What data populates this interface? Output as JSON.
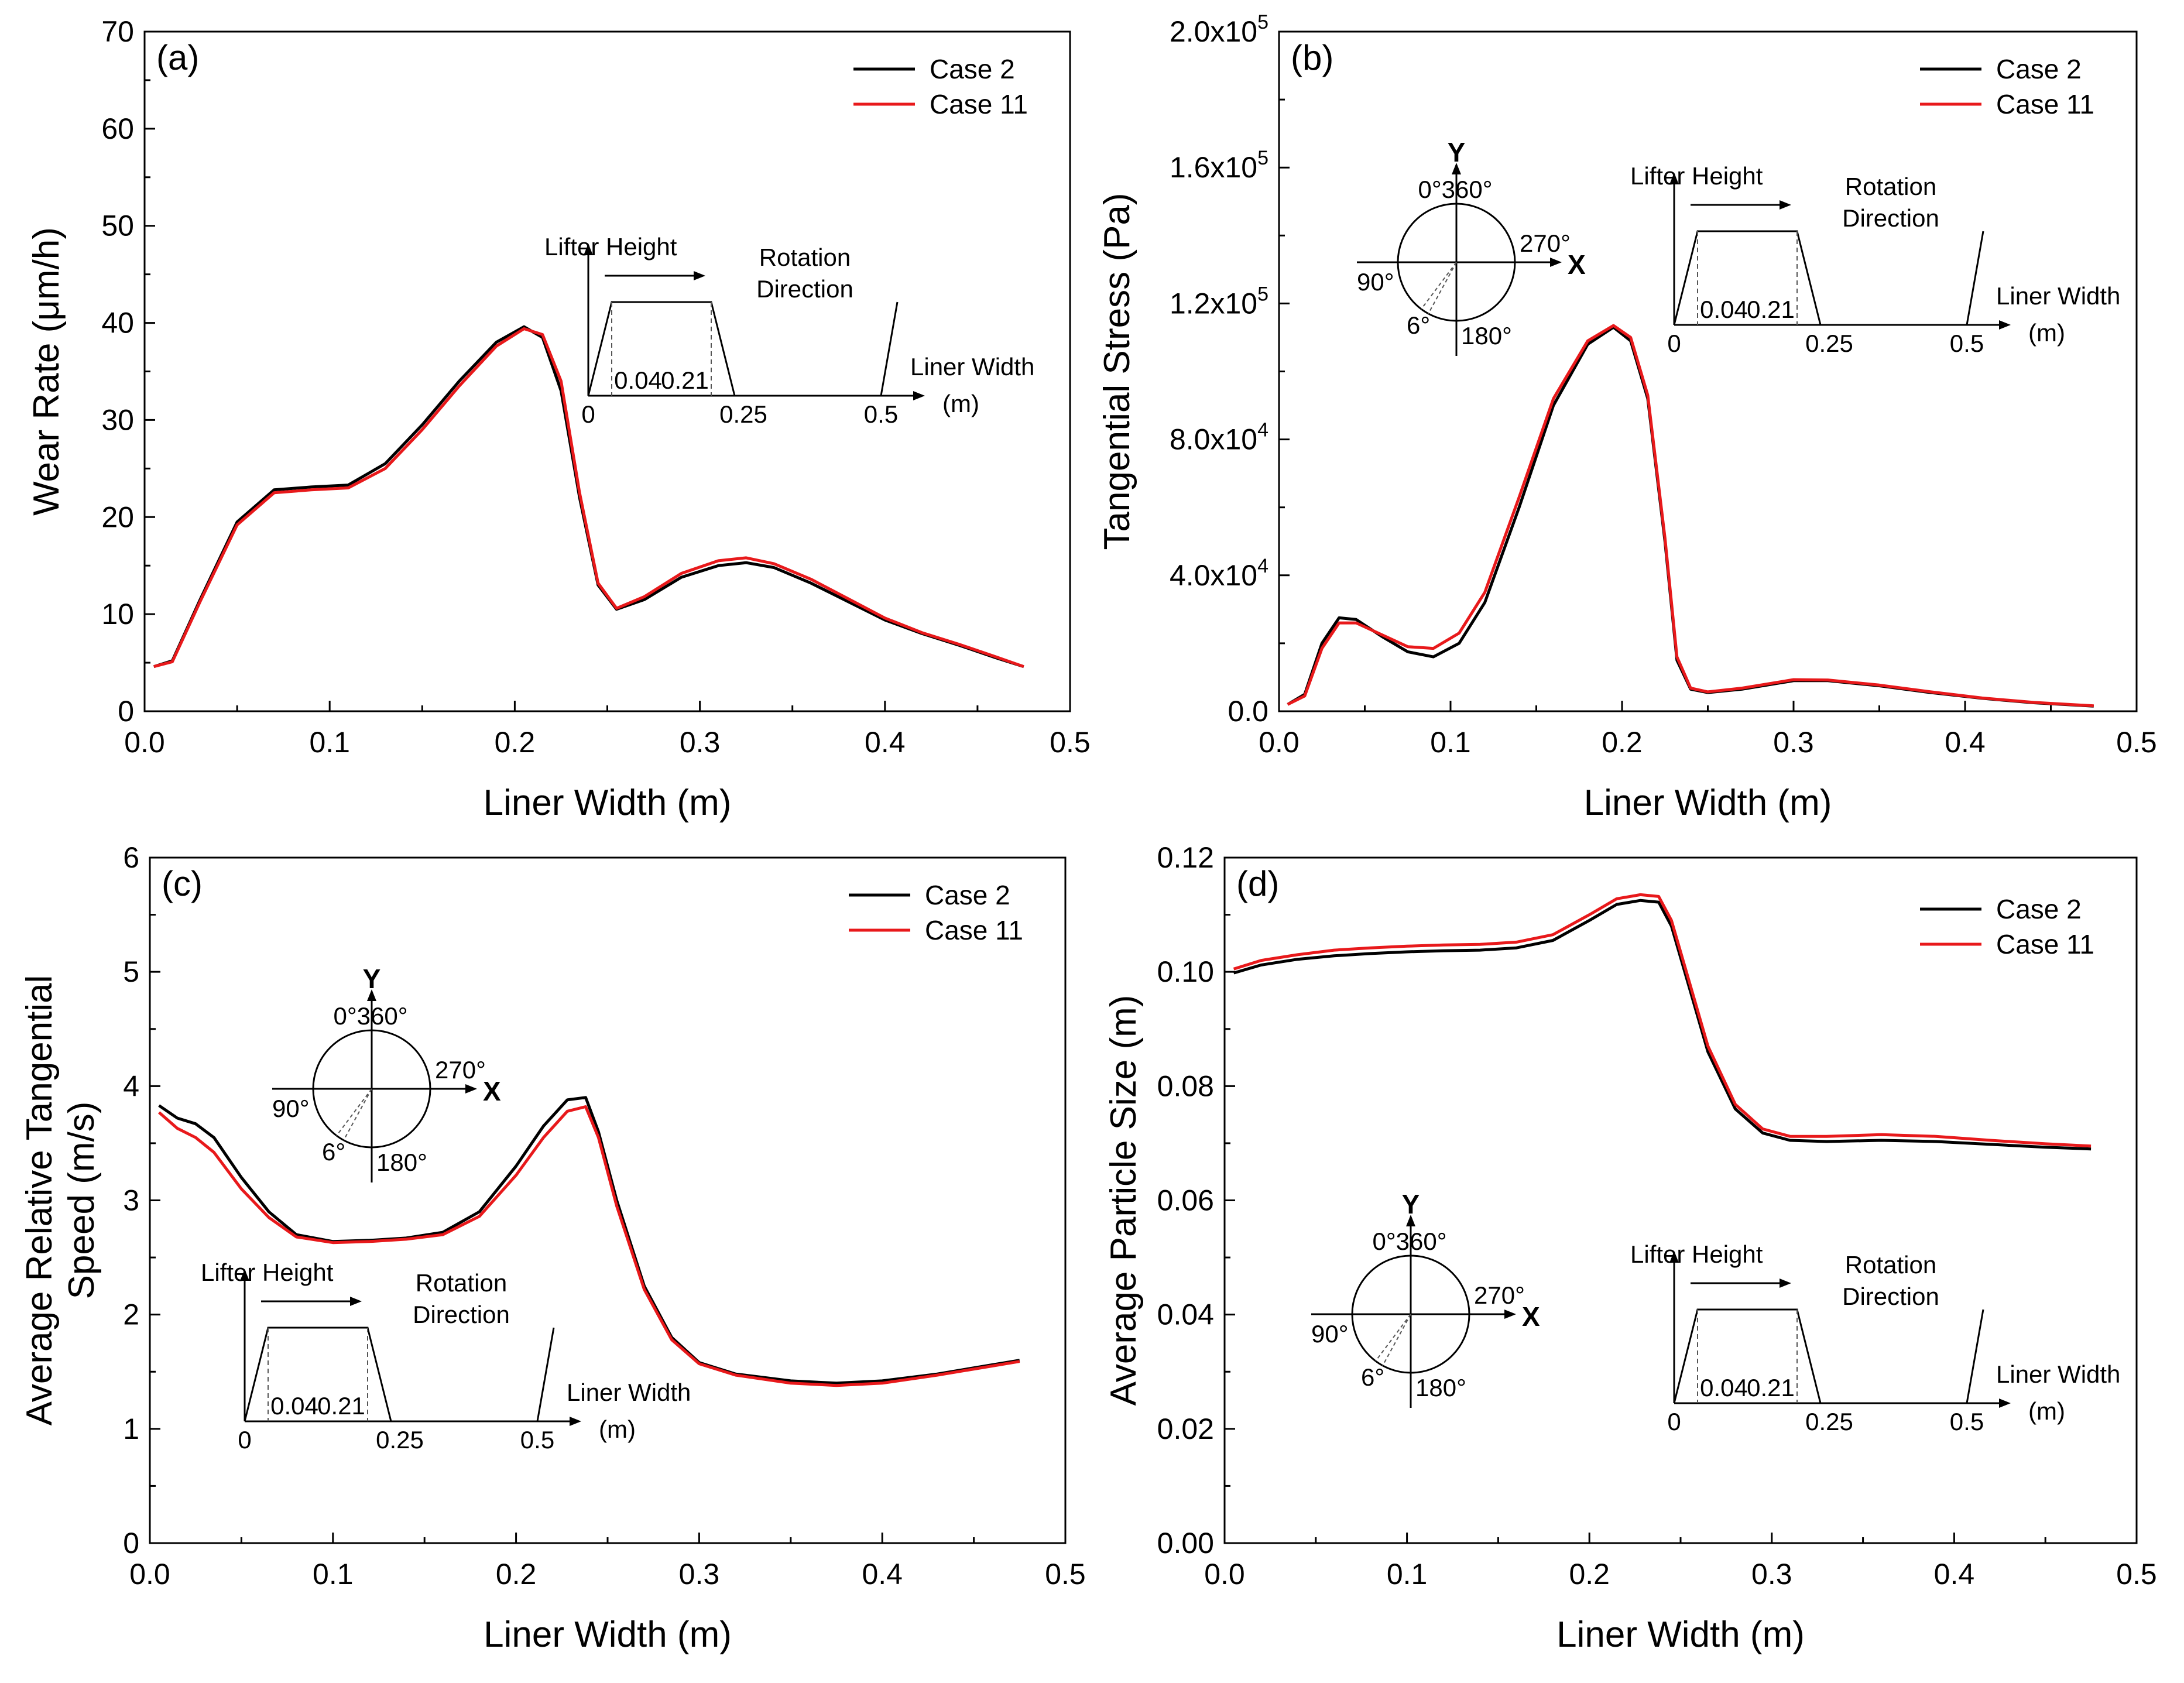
{
  "figure": {
    "description_panels": [
      "a",
      "b",
      "c",
      "d"
    ]
  },
  "chart_data": [
    {
      "type": "line",
      "panel_label": "(a)",
      "xlabel": "Liner Width (m)",
      "ylabel": "Wear Rate (μm/h)",
      "xlim": [
        0,
        0.5
      ],
      "ylim": [
        0,
        70
      ],
      "xticks": [
        0.0,
        0.1,
        0.2,
        0.3,
        0.4,
        0.5
      ],
      "xtick_labels": [
        "0.0",
        "0.1",
        "0.2",
        "0.3",
        "0.4",
        "0.5"
      ],
      "yticks": [
        0,
        10,
        20,
        30,
        40,
        50,
        60,
        70
      ],
      "ytick_labels": [
        "0",
        "10",
        "20",
        "30",
        "40",
        "50",
        "60",
        "70"
      ],
      "legend_position": "top-right",
      "series": [
        {
          "name": "Case 2",
          "color": "#000000",
          "x": [
            0.005,
            0.015,
            0.03,
            0.05,
            0.07,
            0.09,
            0.11,
            0.13,
            0.15,
            0.17,
            0.19,
            0.205,
            0.215,
            0.225,
            0.235,
            0.245,
            0.255,
            0.27,
            0.29,
            0.31,
            0.325,
            0.34,
            0.36,
            0.38,
            0.4,
            0.42,
            0.44,
            0.46,
            0.475
          ],
          "y": [
            4.6,
            5.2,
            11.5,
            19.5,
            22.8,
            23.1,
            23.3,
            25.5,
            29.5,
            34.0,
            38.0,
            39.6,
            38.5,
            33.0,
            22.0,
            13.0,
            10.5,
            11.5,
            13.8,
            15.0,
            15.3,
            14.8,
            13.2,
            11.3,
            9.4,
            8.0,
            6.8,
            5.5,
            4.6
          ]
        },
        {
          "name": "Case 11",
          "color": "#e8191b",
          "x": [
            0.005,
            0.015,
            0.03,
            0.05,
            0.07,
            0.09,
            0.11,
            0.13,
            0.15,
            0.17,
            0.19,
            0.205,
            0.215,
            0.225,
            0.235,
            0.245,
            0.255,
            0.27,
            0.29,
            0.31,
            0.325,
            0.34,
            0.36,
            0.38,
            0.4,
            0.42,
            0.44,
            0.46,
            0.475
          ],
          "y": [
            4.6,
            5.1,
            11.3,
            19.2,
            22.5,
            22.8,
            23.0,
            25.0,
            29.0,
            33.5,
            37.6,
            39.4,
            38.8,
            34.0,
            22.5,
            13.2,
            10.6,
            11.8,
            14.2,
            15.5,
            15.8,
            15.2,
            13.6,
            11.6,
            9.6,
            8.1,
            6.9,
            5.6,
            4.6
          ]
        }
      ],
      "inset": {
        "type": "lifter"
      }
    },
    {
      "type": "line",
      "panel_label": "(b)",
      "xlabel": "Liner Width (m)",
      "ylabel": "Tangential Stress (Pa)",
      "xlim": [
        0,
        0.5
      ],
      "ylim": [
        0,
        200000
      ],
      "xticks": [
        0.0,
        0.1,
        0.2,
        0.3,
        0.4,
        0.5
      ],
      "xtick_labels": [
        "0.0",
        "0.1",
        "0.2",
        "0.3",
        "0.4",
        "0.5"
      ],
      "yticks": [
        0,
        40000,
        80000,
        120000,
        160000,
        200000
      ],
      "ytick_labels": [
        {
          "mant": "0.0",
          "exp": ""
        },
        {
          "mant": "4.0x10",
          "exp": "4"
        },
        {
          "mant": "8.0x10",
          "exp": "4"
        },
        {
          "mant": "1.2x10",
          "exp": "5"
        },
        {
          "mant": "1.6x10",
          "exp": "5"
        },
        {
          "mant": "2.0x10",
          "exp": "5"
        }
      ],
      "legend_position": "top-right",
      "series": [
        {
          "name": "Case 2",
          "color": "#000000",
          "x": [
            0.005,
            0.015,
            0.025,
            0.035,
            0.045,
            0.06,
            0.075,
            0.09,
            0.105,
            0.12,
            0.14,
            0.16,
            0.18,
            0.195,
            0.205,
            0.215,
            0.225,
            0.232,
            0.24,
            0.25,
            0.27,
            0.3,
            0.32,
            0.35,
            0.38,
            0.41,
            0.44,
            0.475
          ],
          "y": [
            2000,
            5000,
            20000,
            27500,
            27000,
            22000,
            17500,
            16000,
            20000,
            32000,
            60000,
            90000,
            108000,
            113000,
            109000,
            92000,
            50000,
            15000,
            6500,
            5500,
            6500,
            9000,
            9000,
            7500,
            5500,
            3800,
            2500,
            1500
          ]
        },
        {
          "name": "Case 11",
          "color": "#e8191b",
          "x": [
            0.005,
            0.015,
            0.025,
            0.035,
            0.045,
            0.06,
            0.075,
            0.09,
            0.105,
            0.12,
            0.14,
            0.16,
            0.18,
            0.195,
            0.205,
            0.215,
            0.225,
            0.232,
            0.24,
            0.25,
            0.27,
            0.3,
            0.32,
            0.35,
            0.38,
            0.41,
            0.44,
            0.475
          ],
          "y": [
            2000,
            4500,
            18500,
            26000,
            26000,
            22500,
            19000,
            18500,
            23000,
            35000,
            63000,
            92000,
            109000,
            113500,
            110000,
            93000,
            51000,
            16000,
            6800,
            5700,
            6800,
            9300,
            9200,
            7700,
            5700,
            3900,
            2600,
            1600
          ]
        }
      ],
      "inset": {
        "type": "lifter+circle"
      }
    },
    {
      "type": "line",
      "panel_label": "(c)",
      "xlabel": "Liner Width (m)",
      "ylabel_line1": "Average Relative Tangential",
      "ylabel_line2": "Speed (m/s)",
      "xlim": [
        0,
        0.5
      ],
      "ylim": [
        0,
        6
      ],
      "xticks": [
        0.0,
        0.1,
        0.2,
        0.3,
        0.4,
        0.5
      ],
      "xtick_labels": [
        "0.0",
        "0.1",
        "0.2",
        "0.3",
        "0.4",
        "0.5"
      ],
      "yticks": [
        0,
        1,
        2,
        3,
        4,
        5,
        6
      ],
      "ytick_labels": [
        "0",
        "1",
        "2",
        "3",
        "4",
        "5",
        "6"
      ],
      "legend_position": "top-right",
      "series": [
        {
          "name": "Case 2",
          "color": "#000000",
          "x": [
            0.005,
            0.015,
            0.025,
            0.035,
            0.05,
            0.065,
            0.08,
            0.1,
            0.12,
            0.14,
            0.16,
            0.18,
            0.2,
            0.215,
            0.228,
            0.238,
            0.245,
            0.255,
            0.27,
            0.285,
            0.3,
            0.32,
            0.35,
            0.375,
            0.4,
            0.43,
            0.46,
            0.475
          ],
          "y": [
            3.83,
            3.72,
            3.67,
            3.55,
            3.2,
            2.9,
            2.7,
            2.64,
            2.65,
            2.67,
            2.72,
            2.9,
            3.3,
            3.65,
            3.88,
            3.9,
            3.6,
            3.0,
            2.25,
            1.8,
            1.58,
            1.48,
            1.42,
            1.4,
            1.42,
            1.48,
            1.56,
            1.6
          ]
        },
        {
          "name": "Case 11",
          "color": "#e8191b",
          "x": [
            0.005,
            0.015,
            0.025,
            0.035,
            0.05,
            0.065,
            0.08,
            0.1,
            0.12,
            0.14,
            0.16,
            0.18,
            0.2,
            0.215,
            0.228,
            0.238,
            0.245,
            0.255,
            0.27,
            0.285,
            0.3,
            0.32,
            0.35,
            0.375,
            0.4,
            0.43,
            0.46,
            0.475
          ],
          "y": [
            3.77,
            3.63,
            3.55,
            3.42,
            3.1,
            2.85,
            2.68,
            2.63,
            2.64,
            2.66,
            2.7,
            2.86,
            3.22,
            3.55,
            3.78,
            3.82,
            3.55,
            2.95,
            2.22,
            1.78,
            1.57,
            1.47,
            1.4,
            1.38,
            1.4,
            1.47,
            1.55,
            1.59
          ]
        }
      ],
      "inset": {
        "type": "lifter+circle"
      }
    },
    {
      "type": "line",
      "panel_label": "(d)",
      "xlabel": "Liner Width (m)",
      "ylabel": "Average Particle Size (m)",
      "xlim": [
        0,
        0.5
      ],
      "ylim": [
        0,
        0.12
      ],
      "xticks": [
        0.0,
        0.1,
        0.2,
        0.3,
        0.4,
        0.5
      ],
      "xtick_labels": [
        "0.0",
        "0.1",
        "0.2",
        "0.3",
        "0.4",
        "0.5"
      ],
      "yticks": [
        0,
        0.02,
        0.04,
        0.06,
        0.08,
        0.1,
        0.12
      ],
      "ytick_labels": [
        "0.00",
        "0.02",
        "0.04",
        "0.06",
        "0.08",
        "0.10",
        "0.12"
      ],
      "legend_position": "top-right",
      "series": [
        {
          "name": "Case 2",
          "color": "#000000",
          "x": [
            0.005,
            0.02,
            0.04,
            0.06,
            0.08,
            0.1,
            0.12,
            0.14,
            0.16,
            0.18,
            0.2,
            0.215,
            0.228,
            0.238,
            0.245,
            0.255,
            0.265,
            0.28,
            0.295,
            0.31,
            0.33,
            0.36,
            0.39,
            0.42,
            0.45,
            0.475
          ],
          "y": [
            0.0998,
            0.1012,
            0.1022,
            0.1028,
            0.1032,
            0.1035,
            0.1037,
            0.1038,
            0.1042,
            0.1055,
            0.109,
            0.1118,
            0.1125,
            0.1122,
            0.108,
            0.097,
            0.086,
            0.076,
            0.0718,
            0.0705,
            0.0703,
            0.0705,
            0.0703,
            0.0698,
            0.0693,
            0.069
          ]
        },
        {
          "name": "Case 11",
          "color": "#e8191b",
          "x": [
            0.005,
            0.02,
            0.04,
            0.06,
            0.08,
            0.1,
            0.12,
            0.14,
            0.16,
            0.18,
            0.2,
            0.215,
            0.228,
            0.238,
            0.245,
            0.255,
            0.265,
            0.28,
            0.295,
            0.31,
            0.33,
            0.36,
            0.39,
            0.42,
            0.45,
            0.475
          ],
          "y": [
            0.1005,
            0.102,
            0.103,
            0.1038,
            0.1042,
            0.1045,
            0.1047,
            0.1048,
            0.1052,
            0.1065,
            0.11,
            0.1128,
            0.1135,
            0.1132,
            0.109,
            0.098,
            0.087,
            0.0768,
            0.0725,
            0.0712,
            0.0712,
            0.0715,
            0.0712,
            0.0705,
            0.0699,
            0.0695
          ]
        }
      ],
      "inset": {
        "type": "lifter+circle"
      }
    }
  ],
  "inset_text": {
    "lifter_height": "Lifter Height",
    "rotation": "Rotation",
    "direction": "Direction",
    "liner_width": "Liner Width",
    "unit_m": "(m)",
    "tick_0": "0",
    "tick_004": "0.04",
    "tick_021": "0.21",
    "tick_025": "0.25",
    "tick_05": "0.5",
    "axis_y": "Y",
    "axis_x": "X",
    "deg_0_360": "0°360°",
    "deg_270": "270°",
    "deg_90": "90°",
    "deg_180": "180°",
    "deg_6": "6°"
  }
}
